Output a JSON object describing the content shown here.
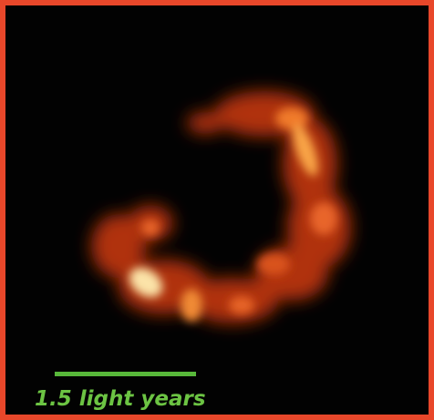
{
  "scale_label": "1.5 light years"
}
